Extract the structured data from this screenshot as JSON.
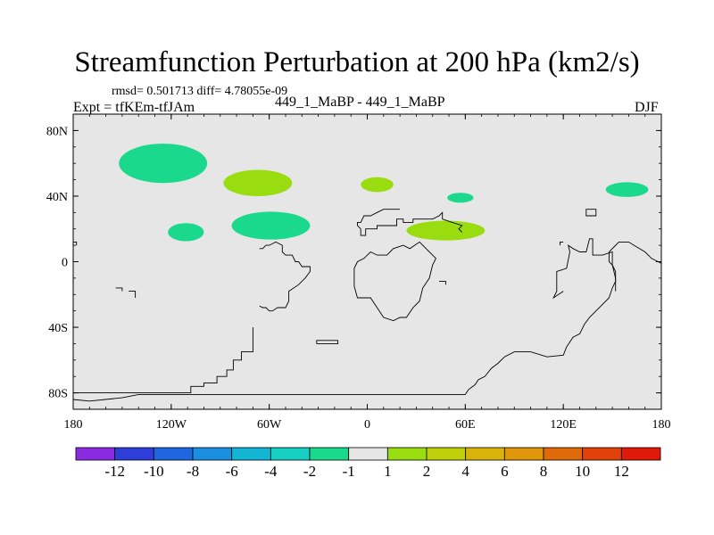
{
  "header": {
    "title": "Streamfunction Perturbation at 200 hPa (km2/s)",
    "stats": "rmsd= 0.501713 diff= 4.78055e-09",
    "experiment": "Expt = tfKEm-tfJAm",
    "case": "449_1_MaBP - 449_1_MaBP",
    "season": "DJF"
  },
  "map": {
    "background": "#e6e6e6",
    "lon_range": [
      -180,
      180
    ],
    "lat_range": [
      -90,
      90
    ],
    "x_ticks": [
      {
        "lon": -180,
        "label": "180"
      },
      {
        "lon": -120,
        "label": "120W"
      },
      {
        "lon": -60,
        "label": "60W"
      },
      {
        "lon": 0,
        "label": "0"
      },
      {
        "lon": 60,
        "label": "60E"
      },
      {
        "lon": 120,
        "label": "120E"
      },
      {
        "lon": 180,
        "label": "180"
      }
    ],
    "y_ticks": [
      {
        "lat": 80,
        "label": "80N"
      },
      {
        "lat": 40,
        "label": "40N"
      },
      {
        "lat": 0,
        "label": "0"
      },
      {
        "lat": -40,
        "label": "40S"
      },
      {
        "lat": -80,
        "label": "80S"
      }
    ],
    "anomalies": [
      {
        "name": "anomaly-north-pacific",
        "lon": -125,
        "lat": 60,
        "rx": 27,
        "ry": 12,
        "color": "#1ad98c"
      },
      {
        "name": "anomaly-north-america",
        "lon": -67,
        "lat": 48,
        "rx": 21,
        "ry": 8,
        "color": "#99dd11"
      },
      {
        "name": "anomaly-east-pacific",
        "lon": -111,
        "lat": 18,
        "rx": 11,
        "ry": 5.5,
        "color": "#1ad98c"
      },
      {
        "name": "anomaly-caribbean",
        "lon": -59,
        "lat": 22,
        "rx": 24,
        "ry": 8.5,
        "color": "#1ad98c"
      },
      {
        "name": "anomaly-north-atlantic",
        "lon": 6,
        "lat": 47,
        "rx": 10,
        "ry": 4.5,
        "color": "#99dd11"
      },
      {
        "name": "anomaly-middle-east",
        "lon": 57,
        "lat": 39,
        "rx": 8,
        "ry": 3,
        "color": "#1ad98c"
      },
      {
        "name": "anomaly-arabia-india",
        "lon": 48,
        "lat": 19,
        "rx": 24,
        "ry": 6,
        "color": "#99dd11"
      },
      {
        "name": "anomaly-northwest-pacific",
        "lon": 159,
        "lat": 44,
        "rx": 13,
        "ry": 4.5,
        "color": "#1ad98c"
      }
    ],
    "coastlines": [
      [
        [
          -180,
          -80
        ],
        [
          -170,
          -80
        ],
        [
          -160,
          -80
        ],
        [
          -150,
          -80
        ],
        [
          -140,
          -80
        ],
        [
          -130,
          -80
        ],
        [
          -120,
          -80
        ],
        [
          -108,
          -80
        ],
        [
          -108,
          -76
        ],
        [
          -100,
          -76
        ],
        [
          -100,
          -74
        ],
        [
          -92,
          -74
        ],
        [
          -92,
          -70
        ],
        [
          -86,
          -70
        ],
        [
          -86,
          -66
        ],
        [
          -82,
          -66
        ],
        [
          -82,
          -60
        ],
        [
          -77,
          -60
        ],
        [
          -77,
          -55
        ],
        [
          -70,
          -55
        ],
        [
          -70,
          -40
        ],
        [
          -70,
          -40
        ]
      ],
      [
        [
          -180,
          -84
        ],
        [
          -170,
          -85
        ],
        [
          -150,
          -83
        ],
        [
          -140,
          -81
        ],
        [
          -100,
          -81
        ],
        [
          -60,
          -81
        ],
        [
          -20,
          -81
        ],
        [
          20,
          -81
        ],
        [
          60,
          -81
        ],
        [
          62,
          -78
        ],
        [
          66,
          -75
        ],
        [
          68,
          -72
        ],
        [
          72,
          -70
        ],
        [
          76,
          -65
        ],
        [
          80,
          -62
        ],
        [
          84,
          -58
        ],
        [
          90,
          -55
        ],
        [
          100,
          -55
        ],
        [
          110,
          -58
        ],
        [
          120,
          -57
        ],
        [
          122,
          -52
        ],
        [
          126,
          -46
        ],
        [
          130,
          -44
        ],
        [
          133,
          -38
        ],
        [
          136,
          -34
        ],
        [
          140,
          -30
        ],
        [
          144,
          -26
        ],
        [
          148,
          -22
        ],
        [
          150,
          -16
        ],
        [
          152,
          -12
        ],
        [
          152,
          -6
        ],
        [
          150,
          -2
        ],
        [
          148,
          0
        ],
        [
          148,
          6
        ],
        [
          151,
          9
        ],
        [
          154,
          12
        ],
        [
          160,
          12
        ],
        [
          165,
          9
        ],
        [
          170,
          6
        ],
        [
          174,
          2
        ],
        [
          178,
          0
        ],
        [
          180,
          -1
        ]
      ],
      [
        [
          120,
          -18
        ],
        [
          114,
          -22
        ],
        [
          116,
          -18
        ],
        [
          116,
          -6
        ],
        [
          122,
          -4
        ],
        [
          124,
          6
        ],
        [
          123,
          10
        ],
        [
          126,
          8
        ],
        [
          130,
          6
        ],
        [
          134,
          6
        ],
        [
          136,
          14
        ],
        [
          138,
          14
        ],
        [
          138,
          4
        ],
        [
          144,
          4
        ],
        [
          150,
          6
        ],
        [
          150,
          -2
        ],
        [
          152,
          -10
        ],
        [
          152,
          -18
        ]
      ],
      [
        [
          -31,
          -50
        ],
        [
          -18,
          -50
        ],
        [
          -18,
          -48
        ],
        [
          -31,
          -48
        ],
        [
          -31,
          -50
        ]
      ],
      [
        [
          -55,
          -28
        ],
        [
          -50,
          -28
        ],
        [
          -48,
          -24
        ],
        [
          -48,
          -18
        ],
        [
          -42,
          -14
        ],
        [
          -38,
          -10
        ],
        [
          -35,
          -6
        ],
        [
          -35,
          -3
        ],
        [
          -40,
          -3
        ],
        [
          -42,
          0
        ],
        [
          -44,
          0
        ],
        [
          -46,
          4
        ],
        [
          -50,
          4
        ],
        [
          -52,
          6
        ],
        [
          -52,
          10
        ],
        [
          -56,
          12
        ],
        [
          -60,
          10
        ],
        [
          -62,
          10
        ],
        [
          -64,
          8
        ],
        [
          -66,
          8
        ]
      ],
      [
        [
          -55,
          -28
        ],
        [
          -58,
          -30
        ],
        [
          -60,
          -30
        ],
        [
          -62,
          -28
        ],
        [
          -64,
          -28
        ],
        [
          -66,
          -27
        ]
      ],
      [
        [
          -8,
          -15
        ],
        [
          -6,
          -22
        ],
        [
          2,
          -22
        ],
        [
          6,
          -28
        ],
        [
          10,
          -34
        ],
        [
          16,
          -36
        ],
        [
          20,
          -34
        ],
        [
          24,
          -34
        ],
        [
          28,
          -28
        ],
        [
          32,
          -24
        ],
        [
          34,
          -16
        ],
        [
          38,
          -10
        ],
        [
          40,
          -2
        ],
        [
          42,
          2
        ],
        [
          36,
          8
        ],
        [
          32,
          12
        ],
        [
          26,
          8
        ],
        [
          22,
          10
        ],
        [
          16,
          8
        ],
        [
          12,
          4
        ],
        [
          6,
          4
        ],
        [
          2,
          6
        ],
        [
          -2,
          2
        ],
        [
          -6,
          0
        ],
        [
          -8,
          -4
        ],
        [
          -8,
          -10
        ],
        [
          -8,
          -15
        ]
      ],
      [
        [
          -4,
          20
        ],
        [
          -4,
          16
        ],
        [
          -1,
          16
        ],
        [
          -1,
          20
        ],
        [
          6,
          20
        ],
        [
          6,
          22
        ],
        [
          18,
          22
        ],
        [
          18,
          26
        ],
        [
          22,
          26
        ],
        [
          22,
          24
        ],
        [
          28,
          24
        ],
        [
          28,
          26
        ],
        [
          40,
          26
        ],
        [
          44,
          28
        ],
        [
          46,
          30
        ],
        [
          46,
          26
        ],
        [
          52,
          24
        ],
        [
          58,
          22
        ],
        [
          56,
          20
        ],
        [
          58,
          18
        ]
      ],
      [
        [
          -4,
          20
        ],
        [
          -6,
          22
        ],
        [
          -6,
          24
        ],
        [
          -4,
          24
        ],
        [
          -2,
          28
        ],
        [
          2,
          28
        ],
        [
          6,
          30
        ],
        [
          10,
          32
        ],
        [
          16,
          32
        ],
        [
          20,
          32
        ]
      ],
      [
        [
          -182,
          12
        ],
        [
          -178,
          12
        ],
        [
          -178,
          10
        ]
      ],
      [
        [
          -154,
          -16
        ],
        [
          -150,
          -16
        ],
        [
          -150,
          -18
        ]
      ],
      [
        [
          -146,
          -18
        ],
        [
          -142,
          -18
        ],
        [
          -142,
          -22
        ]
      ],
      [
        [
          44,
          -12
        ],
        [
          48,
          -12
        ],
        [
          48,
          -14
        ]
      ],
      [
        [
          134,
          30
        ],
        [
          134,
          28
        ],
        [
          140,
          28
        ],
        [
          140,
          32
        ],
        [
          134,
          32
        ],
        [
          134,
          30
        ]
      ],
      [
        [
          118,
          10
        ],
        [
          118,
          12
        ],
        [
          120,
          12
        ]
      ]
    ]
  },
  "colorbar": {
    "colors": [
      "#8a2be2",
      "#2d3ed9",
      "#1f67e0",
      "#1a8fe0",
      "#13b4d4",
      "#14cfc2",
      "#1ad98c",
      "#e6e6e6",
      "#99dd11",
      "#bfd00b",
      "#d8b40a",
      "#e0960a",
      "#e06a0a",
      "#e0420a",
      "#e01a0a"
    ],
    "labels": [
      "-12",
      "-10",
      "-8",
      "-6",
      "-4",
      "-2",
      "-1",
      "1",
      "2",
      "4",
      "6",
      "8",
      "10",
      "12"
    ]
  }
}
